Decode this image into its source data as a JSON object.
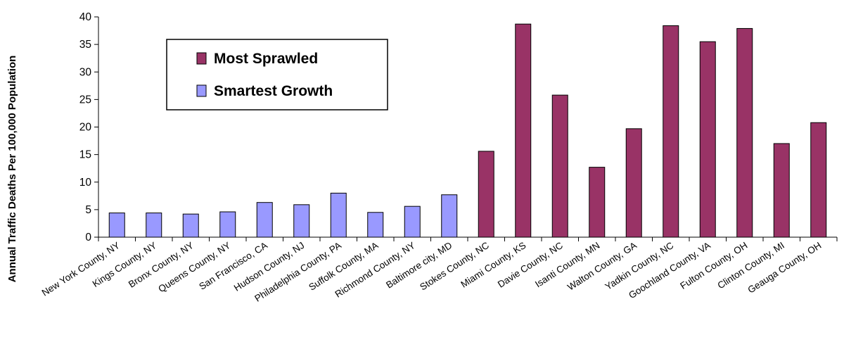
{
  "chart_data": {
    "type": "bar",
    "ylabel": "Annual Traffic Deaths Per 100,000 Population",
    "ylim": [
      0,
      40
    ],
    "yticks": [
      0,
      5,
      10,
      15,
      20,
      25,
      30,
      35,
      40
    ],
    "grid": false,
    "legend_position": "top-left",
    "categories": [
      "New York County, NY",
      "Kings County, NY",
      "Bronx County, NY",
      "Queens County, NY",
      "San Francisco, CA",
      "Hudson County, NJ",
      "Philadelphia County, PA",
      "Suffolk County, MA",
      "Richmond County, NY",
      "Baltimore city, MD",
      "Stokes County, NC",
      "Miami County, KS",
      "Davie County, NC",
      "Isanti County, MN",
      "Walton County, GA",
      "Yadkin County, NC",
      "Goochland County, VA",
      "Fulton County, OH",
      "Clinton County, MI",
      "Geauga County, OH"
    ],
    "values": [
      4.4,
      4.4,
      4.2,
      4.6,
      6.3,
      5.9,
      8.0,
      4.5,
      5.6,
      7.7,
      15.6,
      38.7,
      25.8,
      12.7,
      19.7,
      38.4,
      35.5,
      37.9,
      17.0,
      20.8
    ],
    "series": [
      {
        "name": "Most Sprawled",
        "color": "#993366",
        "categories": [
          "Stokes County, NC",
          "Miami County, KS",
          "Davie County, NC",
          "Isanti County, MN",
          "Walton County, GA",
          "Yadkin County, NC",
          "Goochland County, VA",
          "Fulton County, OH",
          "Clinton County, MI",
          "Geauga County, OH"
        ]
      },
      {
        "name": "Smartest Growth",
        "color": "#9999FF",
        "categories": [
          "New York County, NY",
          "Kings County, NY",
          "Bronx County, NY",
          "Queens County, NY",
          "San Francisco, CA",
          "Hudson County, NJ",
          "Philadelphia County, PA",
          "Suffolk County, MA",
          "Richmond County, NY",
          "Baltimore city, MD"
        ]
      }
    ],
    "legend_order": [
      "Most Sprawled",
      "Smartest Growth"
    ]
  }
}
